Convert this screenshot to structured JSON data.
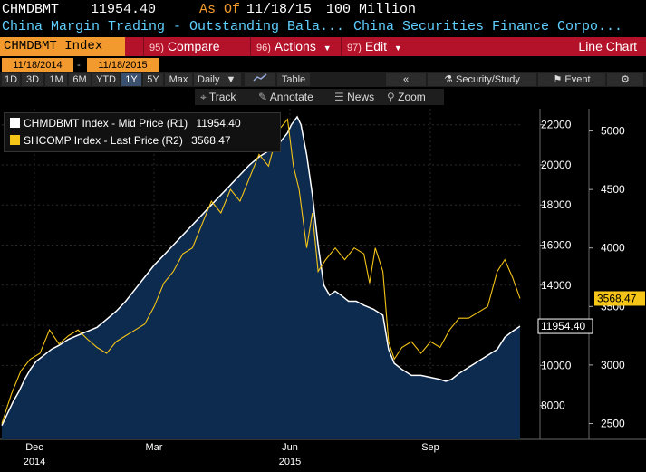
{
  "header": {
    "ticker": "CHMDBMT",
    "price": "11954.40",
    "as_of_label": "As Of",
    "date": "11/18/15",
    "units": "100 Million",
    "desc": "China Margin Trading - Outstanding Bala...",
    "source": "China Securities Finance Corpo..."
  },
  "toolbar": {
    "ticker_label": "CHMDBMT Index",
    "compare": {
      "num": "95)",
      "label": "Compare"
    },
    "actions": {
      "num": "96)",
      "label": "Actions"
    },
    "edit": {
      "num": "97)",
      "label": "Edit"
    },
    "view": "Line Chart"
  },
  "dates": {
    "start": "11/18/2014",
    "end": "11/18/2015"
  },
  "periods": [
    "1D",
    "3D",
    "1M",
    "6M",
    "YTD",
    "1Y",
    "5Y",
    "Max"
  ],
  "selected_period": "1Y",
  "frequency": "Daily",
  "frequency_arrow": "▼",
  "table_label": "Table",
  "nav": {
    "back": "«",
    "security_study": "Security/Study",
    "event": "Event"
  },
  "subtools": {
    "track": "Track",
    "annotate": "Annotate",
    "news": "News",
    "zoom": "Zoom"
  },
  "colors": {
    "series1": "#ffffff",
    "series2": "#f5c518",
    "area": "#0d2a4f",
    "toolbar": "#b3122a",
    "accent": "#f29a2e",
    "ticker_bg": "#f29a2e"
  },
  "chart_data": {
    "type": "line",
    "legend": [
      {
        "label": "CHMDBMT Index - Mid Price (R1)",
        "value": "11954.40"
      },
      {
        "label": "SHCOMP Index - Last Price (R2)",
        "value": "3568.47"
      }
    ],
    "x_labels": [
      {
        "month": "Dec",
        "year": "2014"
      },
      {
        "month": "Mar",
        "year": ""
      },
      {
        "month": "Jun",
        "year": "2015"
      },
      {
        "month": "Sep",
        "year": ""
      }
    ],
    "y1_ticks": [
      "8000",
      "10000",
      "12000",
      "14000",
      "16000",
      "18000",
      "20000",
      "22000"
    ],
    "y1_range": [
      6400,
      22800
    ],
    "y2_ticks": [
      "2500",
      "3000",
      "3500",
      "4000",
      "4500",
      "5000"
    ],
    "y2_range": [
      2380,
      5190
    ],
    "last_value_r1": "11954.40",
    "last_value_r2": "3568.47",
    "series": [
      {
        "name": "CHMDBMT Index - Mid Price (R1)",
        "values": [
          [
            0,
            7000
          ],
          [
            3,
            7600
          ],
          [
            6,
            8200
          ],
          [
            9,
            8700
          ],
          [
            12,
            9300
          ],
          [
            15,
            9800
          ],
          [
            18,
            10200
          ],
          [
            22,
            10500
          ],
          [
            26,
            10800
          ],
          [
            30,
            11000
          ],
          [
            35,
            11300
          ],
          [
            40,
            11500
          ],
          [
            45,
            11700
          ],
          [
            50,
            11900
          ],
          [
            55,
            12300
          ],
          [
            60,
            12700
          ],
          [
            65,
            13200
          ],
          [
            70,
            13800
          ],
          [
            75,
            14400
          ],
          [
            80,
            15000
          ],
          [
            85,
            15500
          ],
          [
            90,
            16000
          ],
          [
            95,
            16500
          ],
          [
            100,
            17000
          ],
          [
            105,
            17500
          ],
          [
            110,
            18000
          ],
          [
            115,
            18500
          ],
          [
            120,
            19000
          ],
          [
            125,
            19500
          ],
          [
            130,
            20000
          ],
          [
            135,
            20400
          ],
          [
            140,
            20700
          ],
          [
            145,
            21000
          ],
          [
            150,
            21600
          ],
          [
            152,
            22000
          ],
          [
            155,
            22400
          ],
          [
            157,
            22000
          ],
          [
            160,
            20500
          ],
          [
            163,
            18500
          ],
          [
            166,
            16000
          ],
          [
            169,
            14000
          ],
          [
            172,
            13500
          ],
          [
            175,
            13700
          ],
          [
            178,
            13500
          ],
          [
            182,
            13200
          ],
          [
            186,
            13200
          ],
          [
            190,
            13000
          ],
          [
            195,
            12800
          ],
          [
            200,
            12500
          ],
          [
            203,
            10800
          ],
          [
            206,
            10100
          ],
          [
            210,
            9800
          ],
          [
            215,
            9500
          ],
          [
            220,
            9500
          ],
          [
            225,
            9400
          ],
          [
            230,
            9300
          ],
          [
            233,
            9200
          ],
          [
            236,
            9300
          ],
          [
            240,
            9600
          ],
          [
            245,
            9900
          ],
          [
            250,
            10200
          ],
          [
            255,
            10500
          ],
          [
            260,
            10800
          ],
          [
            264,
            11400
          ],
          [
            268,
            11700
          ],
          [
            272,
            11954
          ]
        ]
      },
      {
        "name": "SHCOMP Index - Last Price (R2)",
        "values": [
          [
            0,
            2500
          ],
          [
            5,
            2750
          ],
          [
            10,
            2950
          ],
          [
            15,
            3050
          ],
          [
            20,
            3100
          ],
          [
            25,
            3300
          ],
          [
            30,
            3180
          ],
          [
            35,
            3250
          ],
          [
            40,
            3300
          ],
          [
            45,
            3220
          ],
          [
            50,
            3150
          ],
          [
            55,
            3100
          ],
          [
            60,
            3200
          ],
          [
            65,
            3250
          ],
          [
            70,
            3300
          ],
          [
            75,
            3350
          ],
          [
            80,
            3500
          ],
          [
            85,
            3700
          ],
          [
            90,
            3800
          ],
          [
            95,
            3950
          ],
          [
            100,
            4000
          ],
          [
            105,
            4200
          ],
          [
            110,
            4400
          ],
          [
            115,
            4300
          ],
          [
            120,
            4500
          ],
          [
            125,
            4400
          ],
          [
            130,
            4600
          ],
          [
            135,
            4800
          ],
          [
            140,
            4700
          ],
          [
            145,
            5000
          ],
          [
            150,
            5100
          ],
          [
            153,
            4700
          ],
          [
            156,
            4500
          ],
          [
            160,
            4000
          ],
          [
            163,
            4300
          ],
          [
            166,
            3800
          ],
          [
            170,
            3900
          ],
          [
            175,
            4000
          ],
          [
            180,
            3900
          ],
          [
            185,
            4000
          ],
          [
            190,
            3950
          ],
          [
            193,
            3700
          ],
          [
            196,
            4000
          ],
          [
            200,
            3800
          ],
          [
            203,
            3200
          ],
          [
            206,
            3050
          ],
          [
            210,
            3150
          ],
          [
            215,
            3200
          ],
          [
            220,
            3100
          ],
          [
            225,
            3200
          ],
          [
            230,
            3150
          ],
          [
            235,
            3300
          ],
          [
            240,
            3400
          ],
          [
            245,
            3400
          ],
          [
            250,
            3450
          ],
          [
            255,
            3500
          ],
          [
            260,
            3800
          ],
          [
            264,
            3900
          ],
          [
            268,
            3750
          ],
          [
            272,
            3568
          ]
        ]
      }
    ]
  }
}
